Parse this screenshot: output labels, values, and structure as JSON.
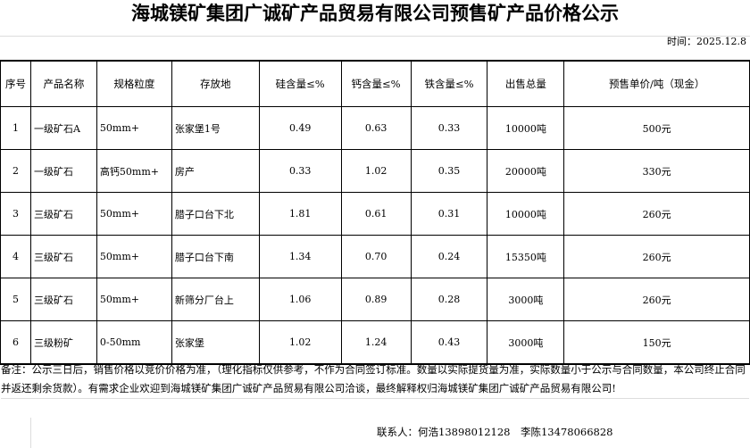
{
  "title": "海城镁矿集团广诚矿产品贸易有限公司预售矿产品价格公示",
  "time": "时间：2025.12.8",
  "headers": [
    "序号",
    "产品名称",
    "规格粒度",
    "存放地",
    "硅含量≤%",
    "钙含量≤%",
    "铁含量≤%",
    "出售总量",
    "预售单价/吨（现金）"
  ],
  "rows": [
    [
      "1",
      "一级矿石A",
      "50mm+",
      "张家堡1号",
      "0.49",
      "0.63",
      "0.33",
      "10000吨",
      "500元"
    ],
    [
      "2",
      "一级矿石",
      "高钙50mm+",
      "房产",
      "0.33",
      "1.02",
      "0.35",
      "20000吨",
      "330元"
    ],
    [
      "3",
      "三级矿石",
      "50mm+",
      "腊子口台下北",
      "1.81",
      "0.61",
      "0.31",
      "10000吨",
      "260元"
    ],
    [
      "4",
      "三级矿石",
      "50mm+",
      "腊子口台下南",
      "1.34",
      "0.70",
      "0.24",
      "15350吨",
      "260元"
    ],
    [
      "5",
      "三级矿石",
      "50mm+",
      "新筛分厂台上",
      "1.06",
      "0.89",
      "0.28",
      "3000吨",
      "260元"
    ],
    [
      "6",
      "三级粉矿",
      "0-50mm",
      "张家堡",
      "1.02",
      "1.24",
      "0.43",
      "3000吨",
      "150元"
    ]
  ],
  "note": "备注：公示三日后，销售价格以竞价价格为准，（理化指标仅供参考，不作为合同签订标准。数量以实际提货量为准，实际数量小于公示与合同数量，本公司终止合同并返还剩余货款）。有需求企业欢迎到海城镁矿集团广诚矿产品贸易有限公司洽谈，最终解释权归海城镁矿集团广诚矿产品贸易有限公司!",
  "contact": "联系人：何浩13898012128　李陈13478066828"
}
